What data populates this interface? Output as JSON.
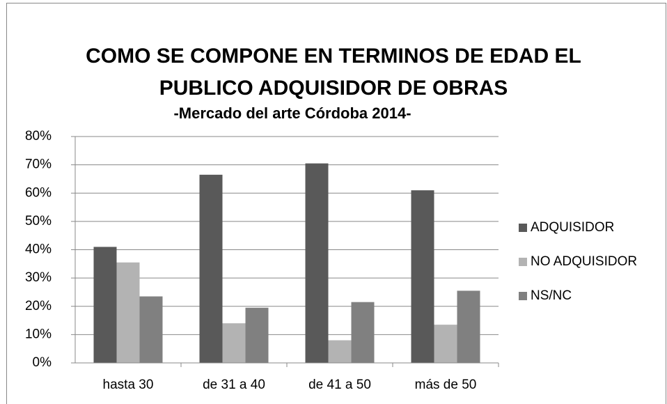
{
  "chart_data": {
    "type": "bar",
    "title": [
      "COMO SE COMPONE EN TERMINOS DE EDAD EL",
      "PUBLICO ADQUISIDOR DE OBRAS"
    ],
    "subtitle": "-Mercado del arte Córdoba 2014-",
    "categories": [
      "hasta 30",
      "de 31 a 40",
      "de 41 a 50",
      "más de 50"
    ],
    "series": [
      {
        "name": "ADQUISIDOR",
        "color": "#595959",
        "values": [
          41,
          66.5,
          70.5,
          61
        ]
      },
      {
        "name": "NO ADQUISIDOR",
        "color": "#b3b3b3",
        "values": [
          35.5,
          14,
          8,
          13.5
        ]
      },
      {
        "name": "NS/NC",
        "color": "#808080",
        "values": [
          23.5,
          19.5,
          21.5,
          25.5
        ]
      }
    ],
    "ylim": [
      0,
      80
    ],
    "yticks": [
      {
        "value": 0,
        "label": "0%"
      },
      {
        "value": 10,
        "label": "10%"
      },
      {
        "value": 20,
        "label": "20%"
      },
      {
        "value": 30,
        "label": "30%"
      },
      {
        "value": 40,
        "label": "40%"
      },
      {
        "value": 50,
        "label": "50%"
      },
      {
        "value": 60,
        "label": "60%"
      },
      {
        "value": 70,
        "label": "70%"
      },
      {
        "value": 80,
        "label": "80%"
      }
    ],
    "grid": true,
    "legend": "right"
  }
}
